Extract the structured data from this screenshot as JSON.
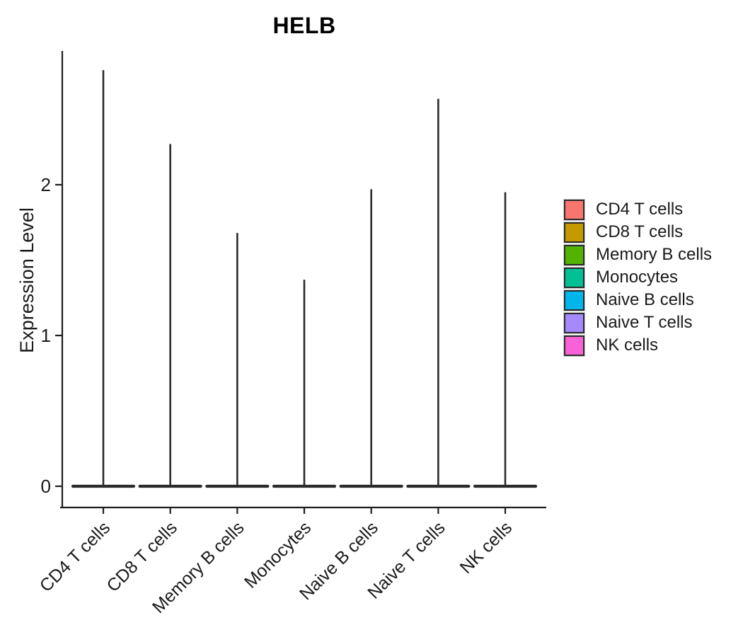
{
  "figure": {
    "title": "HELB",
    "y_axis": {
      "label": "Expression Level",
      "ticks": [
        "0",
        "1",
        "2"
      ]
    }
  },
  "chart_data": {
    "type": "violin",
    "title": "HELB",
    "xlabel": "",
    "ylabel": "Expression Level",
    "ylim": [
      0,
      2.9
    ],
    "yticks": [
      0,
      1,
      2
    ],
    "categories": [
      "CD4 T cells",
      "CD8 T cells",
      "Memory B cells",
      "Monocytes",
      "Naive B cells",
      "Naive T cells",
      "NK cells"
    ],
    "series": [
      {
        "name": "max_expression_spike",
        "values": [
          2.76,
          2.27,
          1.68,
          1.37,
          1.97,
          2.57,
          1.95
        ]
      },
      {
        "name": "distribution_mode",
        "values": [
          0,
          0,
          0,
          0,
          0,
          0,
          0
        ]
      }
    ],
    "shape_note": "Each violin is collapsed flat at expression 0 with a single thin vertical spike reaching the max expression value",
    "violin_outline_color": "#2b2b2b",
    "axis_color": "#1f1f1f",
    "grid": "off",
    "legend": {
      "position": "right",
      "entries": [
        {
          "label": "CD4 T cells",
          "color": "#F8766D"
        },
        {
          "label": "CD8 T cells",
          "color": "#C49A00"
        },
        {
          "label": "Memory B cells",
          "color": "#53B400"
        },
        {
          "label": "Monocytes",
          "color": "#00C094"
        },
        {
          "label": "Naive B cells",
          "color": "#00B6EB"
        },
        {
          "label": "Naive T cells",
          "color": "#A58AFF"
        },
        {
          "label": "NK cells",
          "color": "#FB61D7"
        }
      ]
    }
  }
}
